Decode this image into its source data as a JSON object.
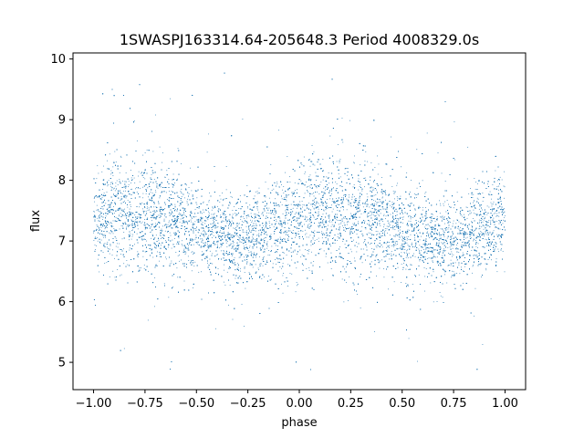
{
  "chart_data": {
    "type": "scatter",
    "title": "1SWASPJ163314.64-205648.3 Period 4008329.0s",
    "xlabel": "phase",
    "ylabel": "flux",
    "xlim": [
      -1.1,
      1.1
    ],
    "ylim": [
      4.55,
      10.1
    ],
    "x_ticks": [
      -1.0,
      -0.75,
      -0.5,
      -0.25,
      0.0,
      0.25,
      0.5,
      0.75,
      1.0
    ],
    "x_tick_labels": [
      "−1.00",
      "−0.75",
      "−0.50",
      "−0.25",
      "0.00",
      "0.25",
      "0.50",
      "0.75",
      "1.00"
    ],
    "y_ticks": [
      5,
      6,
      7,
      8,
      9,
      10
    ],
    "y_tick_labels": [
      "5",
      "6",
      "7",
      "8",
      "9",
      "10"
    ],
    "grid": false,
    "legend": "none",
    "marker_color": "#1f77b4",
    "phase_range": [
      -1.0,
      1.0
    ],
    "folding": "two cycles, x repeats every 1.0 in phase",
    "series": [
      {
        "phase_profile": {
          "x": [
            0.0,
            0.1,
            0.2,
            0.3,
            0.4,
            0.5,
            0.6,
            0.7,
            0.8,
            0.9,
            1.0
          ],
          "median_flux": [
            7.35,
            7.45,
            7.4,
            7.45,
            7.3,
            7.15,
            7.1,
            7.0,
            7.05,
            7.25,
            7.35
          ],
          "core_spread": [
            0.4,
            0.45,
            0.45,
            0.45,
            0.4,
            0.35,
            0.35,
            0.35,
            0.35,
            0.4,
            0.4
          ]
        },
        "flux_min": 4.8,
        "flux_max": 9.85,
        "n_points": 18000
      }
    ]
  }
}
